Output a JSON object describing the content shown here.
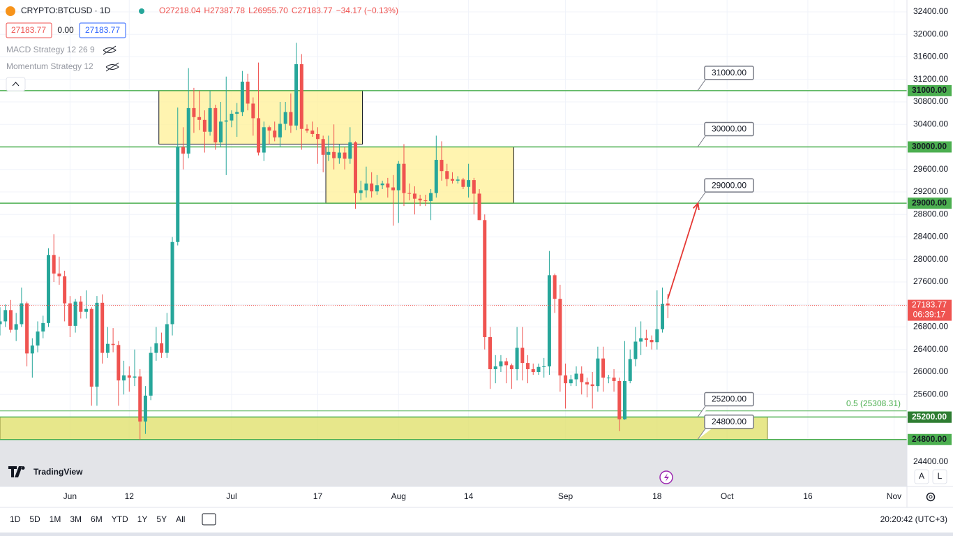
{
  "chart_data": {
    "type": "candlestick",
    "symbol": "CRYPTO:BTCUSD · 1D",
    "ohlc_legend": [
      "O27218.04",
      "H27387.78",
      "L26955.70",
      "C27183.77",
      "−34.17 (−0.13%)"
    ],
    "quote_boxes": [
      "27183.77",
      "0.00",
      "27183.77"
    ],
    "indicators": [
      "MACD Strategy 12 26 9",
      "Momentum Strategy 12"
    ],
    "brand": "TradingView",
    "up_color": "#26a69a",
    "down_color": "#ef5350",
    "candles": [
      [
        26850,
        27150,
        26650,
        26900
      ],
      [
        26900,
        27200,
        26800,
        27100
      ],
      [
        27100,
        27280,
        26700,
        26750
      ],
      [
        26750,
        27050,
        26550,
        26850
      ],
      [
        26850,
        27500,
        26800,
        27220
      ],
      [
        27220,
        27250,
        26100,
        26330
      ],
      [
        26330,
        26600,
        25900,
        26470
      ],
      [
        26470,
        26900,
        26350,
        26720
      ],
      [
        26720,
        27000,
        26600,
        26870
      ],
      [
        26870,
        28200,
        26800,
        28080
      ],
      [
        28080,
        28450,
        27600,
        27750
      ],
      [
        27750,
        28050,
        27550,
        27700
      ],
      [
        27700,
        27800,
        26900,
        27220
      ],
      [
        27220,
        27350,
        26620,
        26820
      ],
      [
        26820,
        27300,
        26700,
        27250
      ],
      [
        27250,
        27350,
        26950,
        27070
      ],
      [
        27070,
        27450,
        26950,
        27120
      ],
      [
        27120,
        27150,
        25400,
        25740
      ],
      [
        25740,
        27350,
        25400,
        27230
      ],
      [
        27230,
        27380,
        26150,
        26340
      ],
      [
        26340,
        26800,
        26250,
        26500
      ],
      [
        26500,
        26780,
        26350,
        26480
      ],
      [
        26480,
        26550,
        25400,
        25850
      ],
      [
        25850,
        26200,
        25600,
        25940
      ],
      [
        25940,
        26100,
        25650,
        25900
      ],
      [
        25900,
        26400,
        25750,
        25920
      ],
      [
        25920,
        26050,
        24800,
        25120
      ],
      [
        25120,
        25750,
        24900,
        25580
      ],
      [
        25580,
        26450,
        25500,
        26340
      ],
      [
        26340,
        26800,
        26200,
        26510
      ],
      [
        26510,
        26700,
        26250,
        26340
      ],
      [
        26340,
        27050,
        26250,
        26850
      ],
      [
        26850,
        28400,
        26650,
        28310
      ],
      [
        28310,
        30700,
        28250,
        30000
      ],
      [
        30000,
        30350,
        29600,
        29880
      ],
      [
        29880,
        31400,
        29800,
        30690
      ],
      [
        30690,
        31050,
        30250,
        30530
      ],
      [
        30530,
        31000,
        30300,
        30480
      ],
      [
        30480,
        30650,
        29900,
        30270
      ],
      [
        30270,
        31000,
        30200,
        30690
      ],
      [
        30690,
        30750,
        29950,
        30080
      ],
      [
        30080,
        30800,
        30000,
        30450
      ],
      [
        30450,
        31250,
        29500,
        30470
      ],
      [
        30470,
        30650,
        30350,
        30590
      ],
      [
        30590,
        30780,
        30180,
        30620
      ],
      [
        30620,
        31350,
        30550,
        31160
      ],
      [
        31160,
        31300,
        30650,
        30770
      ],
      [
        30770,
        30880,
        30200,
        30510
      ],
      [
        30510,
        31500,
        29850,
        29900
      ],
      [
        29900,
        30450,
        29750,
        30350
      ],
      [
        30350,
        30380,
        30050,
        30290
      ],
      [
        30290,
        30450,
        30100,
        30170
      ],
      [
        30170,
        30800,
        30000,
        30410
      ],
      [
        30410,
        30800,
        30300,
        30620
      ],
      [
        30620,
        30950,
        30250,
        30380
      ],
      [
        30380,
        31850,
        30300,
        31470
      ],
      [
        31470,
        31650,
        29950,
        30320
      ],
      [
        30320,
        30400,
        30250,
        30290
      ],
      [
        30290,
        30450,
        30180,
        30230
      ],
      [
        30230,
        30350,
        29700,
        30140
      ],
      [
        30140,
        30200,
        29550,
        29860
      ],
      [
        29860,
        30200,
        29750,
        29910
      ],
      [
        29910,
        30400,
        29600,
        29800
      ],
      [
        29800,
        30050,
        29700,
        29900
      ],
      [
        29900,
        30000,
        29600,
        29790
      ],
      [
        29790,
        30350,
        29700,
        30080
      ],
      [
        30080,
        30100,
        28900,
        29180
      ],
      [
        29180,
        29400,
        29050,
        29230
      ],
      [
        29230,
        29650,
        29100,
        29350
      ],
      [
        29350,
        29550,
        29100,
        29210
      ],
      [
        29210,
        29500,
        29150,
        29320
      ],
      [
        29320,
        29400,
        29250,
        29350
      ],
      [
        29350,
        29450,
        29100,
        29280
      ],
      [
        29280,
        29500,
        28600,
        29230
      ],
      [
        29230,
        29750,
        28650,
        29700
      ],
      [
        29700,
        30050,
        28950,
        29180
      ],
      [
        29180,
        29350,
        29050,
        29170
      ],
      [
        29170,
        29300,
        28800,
        29080
      ],
      [
        29080,
        29150,
        28950,
        29050
      ],
      [
        29050,
        29150,
        28950,
        29040
      ],
      [
        29040,
        29250,
        28700,
        29180
      ],
      [
        29180,
        30200,
        29100,
        29770
      ],
      [
        29770,
        30100,
        29400,
        29570
      ],
      [
        29570,
        29700,
        29300,
        29430
      ],
      [
        29430,
        29550,
        29350,
        29400
      ],
      [
        29400,
        29480,
        29350,
        29420
      ],
      [
        29420,
        29450,
        29250,
        29290
      ],
      [
        29290,
        29700,
        29100,
        29410
      ],
      [
        29410,
        29450,
        28800,
        29170
      ],
      [
        29170,
        29250,
        28700,
        28700
      ],
      [
        28700,
        28800,
        26400,
        26620
      ],
      [
        26620,
        26800,
        25700,
        26050
      ],
      [
        26050,
        26300,
        25800,
        26100
      ],
      [
        26100,
        26300,
        26000,
        26190
      ],
      [
        26190,
        26250,
        25800,
        26120
      ],
      [
        26120,
        26150,
        25700,
        26050
      ],
      [
        26050,
        26800,
        25850,
        26430
      ],
      [
        26430,
        26800,
        25850,
        26160
      ],
      [
        26160,
        26300,
        25800,
        26050
      ],
      [
        26050,
        26150,
        25950,
        26000
      ],
      [
        26000,
        26150,
        25950,
        26090
      ],
      [
        26090,
        26250,
        25900,
        26100
      ],
      [
        26100,
        28150,
        25950,
        27720
      ],
      [
        27720,
        27750,
        27050,
        27300
      ],
      [
        27300,
        27550,
        25650,
        25940
      ],
      [
        25940,
        26150,
        25350,
        25800
      ],
      [
        25800,
        25950,
        25750,
        25870
      ],
      [
        25870,
        26100,
        25750,
        25970
      ],
      [
        25970,
        26100,
        25600,
        25820
      ],
      [
        25820,
        25900,
        25550,
        25780
      ],
      [
        25780,
        26000,
        25350,
        25750
      ],
      [
        25750,
        26450,
        25650,
        26240
      ],
      [
        26240,
        26450,
        25650,
        25900
      ],
      [
        25900,
        25950,
        25800,
        25900
      ],
      [
        25900,
        26050,
        25650,
        25840
      ],
      [
        25840,
        25900,
        24950,
        25160
      ],
      [
        25160,
        26550,
        25150,
        25840
      ],
      [
        25840,
        26400,
        25800,
        26230
      ],
      [
        26230,
        26800,
        26100,
        26540
      ],
      [
        26540,
        26900,
        26300,
        26600
      ],
      [
        26600,
        26750,
        26450,
        26570
      ],
      [
        26570,
        26650,
        26400,
        26530
      ],
      [
        26530,
        27450,
        26400,
        26760
      ],
      [
        26760,
        27500,
        26700,
        27210
      ],
      [
        27218.04,
        27387.78,
        26955.7,
        27183.77
      ]
    ],
    "last_price": {
      "value": 27183.77,
      "label": "27183.77"
    },
    "countdown": "06:39:17",
    "levels": [
      {
        "value": 31000,
        "label": "31000.00"
      },
      {
        "value": 30000,
        "label": "30000.00"
      },
      {
        "value": 29000,
        "label": "29000.00"
      },
      {
        "value": 25200,
        "label": "25200.00"
      },
      {
        "value": 24800,
        "label": "24800.00"
      }
    ],
    "fib": {
      "value": 25308.31,
      "label": "0.5 (25308.31)",
      "axis_label": "25200.00"
    },
    "boxes": [
      {
        "x0": 29.5,
        "x1": 67.3,
        "top": 31000,
        "bottom": 30050
      },
      {
        "x0": 60.5,
        "x1": 95.4,
        "top": 30000,
        "bottom": 29000
      },
      {
        "x0": 0,
        "x1": 142.5,
        "top": 25200,
        "bottom": 24800
      }
    ],
    "arrow": {
      "x": [
        124,
        129.6
      ],
      "y": [
        27300,
        29000
      ]
    },
    "xlim": [
      0,
      168.4
    ],
    "ylim": [
      23966,
      32611
    ],
    "xticks": [
      {
        "value": 13,
        "label": "Jun"
      },
      {
        "value": 24,
        "label": "12"
      },
      {
        "value": 43,
        "label": "Jul"
      },
      {
        "value": 59,
        "label": "17"
      },
      {
        "value": 74,
        "label": "Aug"
      },
      {
        "value": 87,
        "label": "14"
      },
      {
        "value": 105,
        "label": "Sep"
      },
      {
        "value": 122,
        "label": "18"
      },
      {
        "value": 135,
        "label": "Oct"
      },
      {
        "value": 150,
        "label": "16"
      },
      {
        "value": 166,
        "label": "Nov"
      }
    ],
    "yticks": [
      {
        "value": 32400,
        "label": "32400.00"
      },
      {
        "value": 32000,
        "label": "32000.00"
      },
      {
        "value": 31600,
        "label": "31600.00"
      },
      {
        "value": 31200,
        "label": "31200.00"
      },
      {
        "value": 30800,
        "label": "30800.00"
      },
      {
        "value": 30400,
        "label": "30400.00"
      },
      {
        "value": 30000,
        "label": "30000.00"
      },
      {
        "value": 29600,
        "label": "29600.00"
      },
      {
        "value": 29200,
        "label": "29200.00"
      },
      {
        "value": 28800,
        "label": "28800.00"
      },
      {
        "value": 28400,
        "label": "28400.00"
      },
      {
        "value": 28000,
        "label": "28000.00"
      },
      {
        "value": 27600,
        "label": "27600.00"
      },
      {
        "value": 27200,
        "label": "27200.00"
      },
      {
        "value": 26800,
        "label": "26800.00"
      },
      {
        "value": 26400,
        "label": "26400.00"
      },
      {
        "value": 26000,
        "label": "26000.00"
      },
      {
        "value": 25600,
        "label": "25600.00"
      },
      {
        "value": 25200,
        "label": "25200.00"
      },
      {
        "value": 24800,
        "label": "24800.00"
      },
      {
        "value": 24400,
        "label": "24400.00"
      }
    ],
    "grid": true,
    "timeframes": [
      "1D",
      "5D",
      "1M",
      "3M",
      "6M",
      "YTD",
      "1Y",
      "5Y",
      "All"
    ],
    "clock": "20:20:42 (UTC+3)",
    "axis_buttons": [
      "A",
      "L"
    ]
  }
}
